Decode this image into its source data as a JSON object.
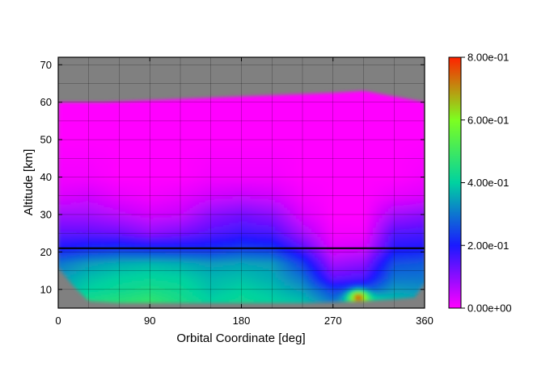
{
  "chart_data": {
    "type": "heatmap",
    "title": "",
    "xlabel": "Orbital Coordinate [deg]",
    "ylabel": "Altitude [km]",
    "xlim": [
      0,
      360
    ],
    "ylim": [
      5,
      72
    ],
    "x_ticks": [
      0,
      90,
      180,
      270,
      360
    ],
    "y_ticks": [
      10,
      20,
      30,
      40,
      50,
      60,
      70
    ],
    "x_grid_step": 30,
    "y_grid_step": 5,
    "grid": true,
    "background_color": "#808080",
    "reference_line": {
      "altitude": 21
    },
    "colorbar": {
      "min": 0.0,
      "max": 0.8,
      "ticks": [
        0.0,
        0.2,
        0.4,
        0.6,
        0.8
      ],
      "tick_labels": [
        "0.00e+00",
        "2.00e-01",
        "4.00e-01",
        "6.00e-01",
        "8.00e-01"
      ],
      "colors": [
        "#ff00ff",
        "#1a1aff",
        "#00d2a0",
        "#7dff20",
        "#ff2200"
      ]
    },
    "coverage": {
      "top_edge": [
        [
          0,
          60
        ],
        [
          45,
          60
        ],
        [
          90,
          60.5
        ],
        [
          135,
          61
        ],
        [
          180,
          61.5
        ],
        [
          225,
          62
        ],
        [
          270,
          62.5
        ],
        [
          300,
          63
        ],
        [
          330,
          61.5
        ],
        [
          350,
          60.5
        ],
        [
          360,
          60
        ]
      ],
      "bottom_edge": [
        [
          0,
          16
        ],
        [
          15,
          11
        ],
        [
          30,
          7
        ],
        [
          60,
          6.5
        ],
        [
          90,
          6.5
        ],
        [
          120,
          6.5
        ],
        [
          180,
          6.5
        ],
        [
          240,
          6.5
        ],
        [
          300,
          7
        ],
        [
          330,
          7.5
        ],
        [
          350,
          8
        ],
        [
          360,
          12
        ]
      ]
    },
    "profiles": [
      {
        "x": 0,
        "values": [
          0.38,
          0.36,
          0.34,
          0.3,
          0.2,
          0.14,
          0.08,
          0.03,
          0.01,
          0.0,
          0.0
        ]
      },
      {
        "x": 30,
        "values": [
          0.44,
          0.4,
          0.38,
          0.34,
          0.22,
          0.14,
          0.08,
          0.04,
          0.01,
          0.0,
          0.0
        ]
      },
      {
        "x": 60,
        "values": [
          0.46,
          0.42,
          0.4,
          0.36,
          0.23,
          0.13,
          0.06,
          0.02,
          0.0,
          0.0,
          0.0
        ]
      },
      {
        "x": 90,
        "values": [
          0.48,
          0.44,
          0.41,
          0.37,
          0.22,
          0.1,
          0.04,
          0.01,
          0.0,
          0.0,
          0.0
        ]
      },
      {
        "x": 120,
        "values": [
          0.44,
          0.42,
          0.4,
          0.36,
          0.22,
          0.12,
          0.05,
          0.02,
          0.0,
          0.0,
          0.0
        ]
      },
      {
        "x": 150,
        "values": [
          0.4,
          0.38,
          0.37,
          0.34,
          0.22,
          0.15,
          0.1,
          0.04,
          0.01,
          0.0,
          0.0
        ]
      },
      {
        "x": 180,
        "values": [
          0.42,
          0.4,
          0.38,
          0.35,
          0.24,
          0.17,
          0.12,
          0.05,
          0.01,
          0.0,
          0.0
        ]
      },
      {
        "x": 210,
        "values": [
          0.4,
          0.38,
          0.36,
          0.34,
          0.23,
          0.16,
          0.1,
          0.04,
          0.01,
          0.0,
          0.0
        ]
      },
      {
        "x": 240,
        "values": [
          0.38,
          0.34,
          0.3,
          0.24,
          0.15,
          0.08,
          0.03,
          0.01,
          0.0,
          0.0,
          0.0
        ]
      },
      {
        "x": 270,
        "values": [
          0.3,
          0.24,
          0.14,
          0.08,
          0.03,
          0.01,
          0.0,
          0.0,
          0.0,
          0.0,
          0.0
        ]
      },
      {
        "x": 300,
        "values": [
          0.45,
          0.26,
          0.16,
          0.1,
          0.04,
          0.01,
          0.0,
          0.0,
          0.0,
          0.0,
          0.0
        ]
      },
      {
        "x": 330,
        "values": [
          0.38,
          0.34,
          0.3,
          0.26,
          0.19,
          0.15,
          0.08,
          0.02,
          0.0,
          0.0,
          0.0
        ]
      },
      {
        "x": 360,
        "values": [
          0.36,
          0.33,
          0.3,
          0.27,
          0.2,
          0.16,
          0.1,
          0.03,
          0.01,
          0.0,
          0.0
        ]
      }
    ],
    "profile_altitudes": [
      7,
      10,
      13,
      17,
      21,
      25,
      30,
      35,
      40,
      50,
      63
    ],
    "hotspot": {
      "x": 295,
      "altitude": 8,
      "value": 0.75
    }
  }
}
